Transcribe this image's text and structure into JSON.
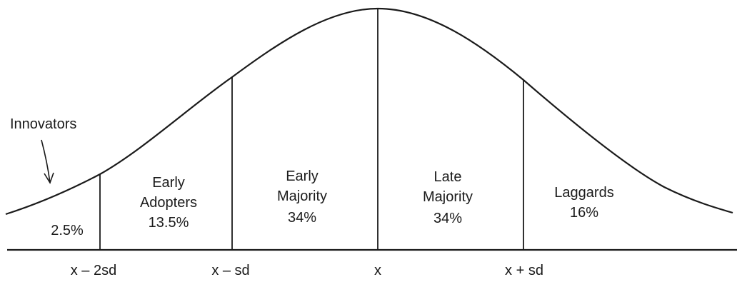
{
  "annotation": {
    "innovators_label": "Innovators"
  },
  "segments": [
    {
      "name": "Innovators",
      "lines": [
        "2.5%"
      ]
    },
    {
      "name": "Early Adopters",
      "lines": [
        "Early",
        "Adopters",
        "13.5%"
      ]
    },
    {
      "name": "Early Majority",
      "lines": [
        "Early",
        "Majority",
        "34%"
      ]
    },
    {
      "name": "Late Majority",
      "lines": [
        "Late",
        "Majority",
        "34%"
      ]
    },
    {
      "name": "Laggards",
      "lines": [
        "Laggards",
        "16%"
      ]
    }
  ],
  "axis_ticks": [
    "x – 2sd",
    "x – sd",
    "x",
    "x + sd"
  ],
  "colors": {
    "line": "#1a1a1a",
    "background": "#ffffff"
  }
}
